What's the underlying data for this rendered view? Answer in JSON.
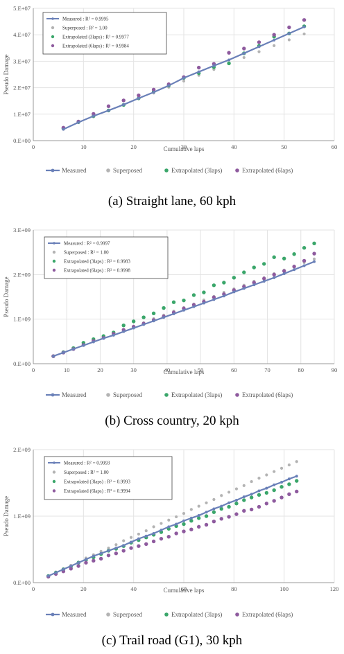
{
  "colors": {
    "measured": "#6a80b8",
    "superposed": "#b3b3b3",
    "extrap3": "#3aa66a",
    "extrap6": "#8e5a9e",
    "grid": "#e3e3e3",
    "axis": "#999999",
    "text": "#555555"
  },
  "legend_bottom": {
    "measured": "Measured",
    "superposed": "Superposed",
    "extrap3": "Extrapolated (3laps)",
    "extrap6": "Extrapolated (6laps)"
  },
  "chart_data": [
    {
      "type": "scatter",
      "caption": "(a) Straight lane, 60 kph",
      "xlabel": "Cumulative laps",
      "ylabel": "Pseudo Damage",
      "xlim": [
        0,
        60
      ],
      "ylim": [
        0,
        50000000
      ],
      "xticks": [
        "0",
        "10",
        "20",
        "30",
        "40",
        "50",
        "60"
      ],
      "yticks": [
        "0.E+00",
        "1.E+07",
        "2.E+07",
        "3.E+07",
        "4.E+07",
        "5.E+07"
      ],
      "inset_legend": [
        {
          "key": "measured",
          "label": "Measured   : R² = 0.9995"
        },
        {
          "key": "superposed",
          "label": "Superposed  : R² = 1.00"
        },
        {
          "key": "extrap3",
          "label": "Extrapolated (3laps)  : R² = 0.9977"
        },
        {
          "key": "extrap6",
          "label": "Extrapolated (6laps)  : R² = 0.9984"
        }
      ],
      "series": [
        {
          "key": "measured",
          "style": "line",
          "x": [
            6,
            9,
            12,
            15,
            18,
            21,
            24,
            27,
            30,
            33,
            36,
            39,
            42,
            45,
            48,
            51,
            54
          ],
          "values": [
            4300000,
            6900000,
            9300000,
            11400000,
            13600000,
            16000000,
            18300000,
            20800000,
            23700000,
            26000000,
            28300000,
            30500000,
            33000000,
            35500000,
            38000000,
            40500000,
            43000000
          ]
        },
        {
          "key": "superposed",
          "style": "dot",
          "x": [
            6,
            9,
            12,
            15,
            18,
            21,
            24,
            27,
            30,
            33,
            36,
            39,
            42,
            45,
            48,
            51,
            54
          ],
          "values": [
            4300000,
            6800000,
            9000000,
            11300000,
            13400000,
            15800000,
            18000000,
            20200000,
            22500000,
            24700000,
            26900000,
            29300000,
            31400000,
            33600000,
            35900000,
            38100000,
            40300000
          ]
        },
        {
          "key": "extrap3",
          "style": "dot",
          "x": [
            6,
            9,
            12,
            15,
            18,
            21,
            24,
            27,
            30,
            33,
            36,
            39,
            42,
            45,
            48,
            51,
            54
          ],
          "values": [
            4600000,
            7000000,
            9300000,
            11400000,
            13500000,
            16000000,
            18500000,
            20800000,
            23700000,
            25500000,
            27800000,
            29200000,
            33000000,
            35800000,
            39300000,
            40500000,
            43200000
          ]
        },
        {
          "key": "extrap6",
          "style": "dot",
          "x": [
            6,
            9,
            12,
            15,
            18,
            21,
            24,
            27,
            30,
            33,
            36,
            39,
            42,
            45,
            48,
            51,
            54
          ],
          "values": [
            4900000,
            7200000,
            10100000,
            13000000,
            15200000,
            17100000,
            19300000,
            21300000,
            24000000,
            27600000,
            29000000,
            33200000,
            34800000,
            37200000,
            40000000,
            42800000,
            45600000
          ]
        }
      ]
    },
    {
      "type": "scatter",
      "caption": "(b) Cross country, 20 kph",
      "xlabel": "Cumulative laps",
      "ylabel": "Pseudo Damage",
      "xlim": [
        0,
        90
      ],
      "ylim": [
        0,
        3000000000
      ],
      "xticks": [
        "0",
        "10",
        "20",
        "30",
        "40",
        "50",
        "60",
        "70",
        "80",
        "90"
      ],
      "yticks": [
        "0.E+00",
        "1.E+09",
        "2.E+09",
        "3.E+09"
      ],
      "inset_legend": [
        {
          "key": "measured",
          "label": "Measured  : R² = 0.9997"
        },
        {
          "key": "superposed",
          "label": "Superposed  : R² = 1.00"
        },
        {
          "key": "extrap3",
          "label": "Extrapolated (3laps)  : R² = 0.9983"
        },
        {
          "key": "extrap6",
          "label": "Extrapolated (6laps)  : R² = 0.9998"
        }
      ],
      "series": [
        {
          "key": "measured",
          "style": "line",
          "x": [
            6,
            9,
            12,
            15,
            18,
            21,
            24,
            27,
            30,
            33,
            36,
            39,
            42,
            45,
            48,
            51,
            54,
            57,
            60,
            63,
            66,
            69,
            72,
            75,
            78,
            81,
            84
          ],
          "values": [
            170000000,
            250000000,
            330000000,
            410000000,
            490000000,
            570000000,
            640000000,
            720000000,
            800000000,
            880000000,
            960000000,
            1040000000,
            1120000000,
            1200000000,
            1280000000,
            1360000000,
            1440000000,
            1520000000,
            1610000000,
            1690000000,
            1770000000,
            1850000000,
            1930000000,
            2020000000,
            2110000000,
            2200000000,
            2290000000
          ]
        },
        {
          "key": "superposed",
          "style": "dot",
          "x": [
            6,
            9,
            12,
            15,
            18,
            21,
            24,
            27,
            30,
            33,
            36,
            39,
            42,
            45,
            48,
            51,
            54,
            57,
            60,
            63,
            66,
            69,
            72,
            75,
            78,
            81,
            84
          ],
          "values": [
            170000000,
            250000000,
            340000000,
            420000000,
            510000000,
            590000000,
            670000000,
            760000000,
            840000000,
            920000000,
            1010000000,
            1090000000,
            1180000000,
            1260000000,
            1340000000,
            1430000000,
            1510000000,
            1600000000,
            1680000000,
            1760000000,
            1850000000,
            1930000000,
            2020000000,
            2100000000,
            2180000000,
            2270000000,
            2350000000
          ]
        },
        {
          "key": "extrap3",
          "style": "dot",
          "x": [
            6,
            9,
            12,
            15,
            18,
            21,
            24,
            27,
            30,
            33,
            36,
            39,
            42,
            45,
            48,
            51,
            54,
            57,
            60,
            63,
            66,
            69,
            72,
            75,
            78,
            81,
            84
          ],
          "values": [
            170000000,
            260000000,
            350000000,
            470000000,
            550000000,
            620000000,
            700000000,
            860000000,
            950000000,
            1040000000,
            1130000000,
            1250000000,
            1380000000,
            1420000000,
            1540000000,
            1600000000,
            1760000000,
            1820000000,
            1930000000,
            2050000000,
            2160000000,
            2240000000,
            2390000000,
            2360000000,
            2460000000,
            2600000000,
            2700000000
          ]
        },
        {
          "key": "extrap6",
          "style": "dot",
          "x": [
            6,
            9,
            12,
            15,
            18,
            21,
            24,
            27,
            30,
            33,
            36,
            39,
            42,
            45,
            48,
            51,
            54,
            57,
            60,
            63,
            66,
            69,
            72,
            75,
            78,
            81,
            84
          ],
          "values": [
            170000000,
            250000000,
            330000000,
            420000000,
            510000000,
            580000000,
            670000000,
            760000000,
            830000000,
            900000000,
            980000000,
            1060000000,
            1150000000,
            1240000000,
            1320000000,
            1390000000,
            1490000000,
            1560000000,
            1650000000,
            1730000000,
            1820000000,
            1910000000,
            2000000000,
            2080000000,
            2180000000,
            2310000000,
            2470000000
          ]
        }
      ]
    },
    {
      "type": "scatter",
      "caption": "(c) Trail road (G1), 30 kph",
      "xlabel": "Cumulative laps",
      "ylabel": "Pseudo Damage",
      "xlim": [
        0,
        120
      ],
      "ylim": [
        0,
        2000000000
      ],
      "xticks": [
        "0",
        "20",
        "40",
        "60",
        "80",
        "100",
        "120"
      ],
      "yticks": [
        "0.E+00",
        "1.E+09",
        "2.E+09"
      ],
      "inset_legend": [
        {
          "key": "measured",
          "label": "Measured  : R² = 0.9993"
        },
        {
          "key": "superposed",
          "label": "Superposed  : R² = 1.00"
        },
        {
          "key": "extrap3",
          "label": "Extrapolated (3laps)  : R² = 0.9993"
        },
        {
          "key": "extrap6",
          "label": "Extrapolated (6laps)  : R² = 0.9994"
        }
      ],
      "series": [
        {
          "key": "measured",
          "style": "line",
          "x": [
            6,
            9,
            12,
            15,
            18,
            21,
            24,
            27,
            30,
            33,
            36,
            39,
            42,
            45,
            48,
            51,
            54,
            57,
            60,
            63,
            66,
            69,
            72,
            75,
            78,
            81,
            84,
            87,
            90,
            93,
            96,
            99,
            102,
            105
          ],
          "values": [
            100000000,
            150000000,
            200000000,
            250000000,
            300000000,
            350000000,
            400000000,
            440000000,
            480000000,
            520000000,
            560000000,
            610000000,
            660000000,
            700000000,
            740000000,
            790000000,
            840000000,
            880000000,
            930000000,
            970000000,
            1010000000,
            1060000000,
            1110000000,
            1150000000,
            1200000000,
            1240000000,
            1290000000,
            1330000000,
            1380000000,
            1420000000,
            1470000000,
            1510000000,
            1560000000,
            1600000000
          ]
        },
        {
          "key": "superposed",
          "style": "dot",
          "x": [
            6,
            9,
            12,
            15,
            18,
            21,
            24,
            27,
            30,
            33,
            36,
            39,
            42,
            45,
            48,
            51,
            54,
            57,
            60,
            63,
            66,
            69,
            72,
            75,
            78,
            81,
            84,
            87,
            90,
            93,
            96,
            99,
            102,
            105
          ],
          "values": [
            100000000,
            160000000,
            210000000,
            260000000,
            310000000,
            370000000,
            420000000,
            470000000,
            520000000,
            570000000,
            630000000,
            680000000,
            730000000,
            780000000,
            840000000,
            890000000,
            940000000,
            990000000,
            1040000000,
            1100000000,
            1150000000,
            1200000000,
            1250000000,
            1310000000,
            1360000000,
            1410000000,
            1460000000,
            1520000000,
            1570000000,
            1620000000,
            1670000000,
            1720000000,
            1770000000,
            1820000000
          ]
        },
        {
          "key": "extrap3",
          "style": "dot",
          "x": [
            6,
            9,
            12,
            15,
            18,
            21,
            24,
            27,
            30,
            33,
            36,
            39,
            42,
            45,
            48,
            51,
            54,
            57,
            60,
            63,
            66,
            69,
            72,
            75,
            78,
            81,
            84,
            87,
            90,
            93,
            96,
            99,
            102,
            105
          ],
          "values": [
            100000000,
            150000000,
            200000000,
            240000000,
            300000000,
            340000000,
            380000000,
            430000000,
            480000000,
            510000000,
            550000000,
            600000000,
            640000000,
            680000000,
            720000000,
            760000000,
            810000000,
            850000000,
            880000000,
            930000000,
            970000000,
            1000000000,
            1060000000,
            1110000000,
            1140000000,
            1190000000,
            1240000000,
            1280000000,
            1320000000,
            1350000000,
            1390000000,
            1440000000,
            1480000000,
            1530000000
          ]
        },
        {
          "key": "extrap6",
          "style": "dot",
          "x": [
            6,
            9,
            12,
            15,
            18,
            21,
            24,
            27,
            30,
            33,
            36,
            39,
            42,
            45,
            48,
            51,
            54,
            57,
            60,
            63,
            66,
            69,
            72,
            75,
            78,
            81,
            84,
            87,
            90,
            93,
            96,
            99,
            102,
            105
          ],
          "values": [
            90000000,
            130000000,
            170000000,
            210000000,
            250000000,
            300000000,
            330000000,
            360000000,
            410000000,
            440000000,
            480000000,
            520000000,
            550000000,
            580000000,
            620000000,
            660000000,
            690000000,
            740000000,
            770000000,
            800000000,
            840000000,
            870000000,
            920000000,
            960000000,
            990000000,
            1030000000,
            1080000000,
            1100000000,
            1140000000,
            1190000000,
            1230000000,
            1280000000,
            1330000000,
            1370000000
          ]
        }
      ]
    }
  ]
}
